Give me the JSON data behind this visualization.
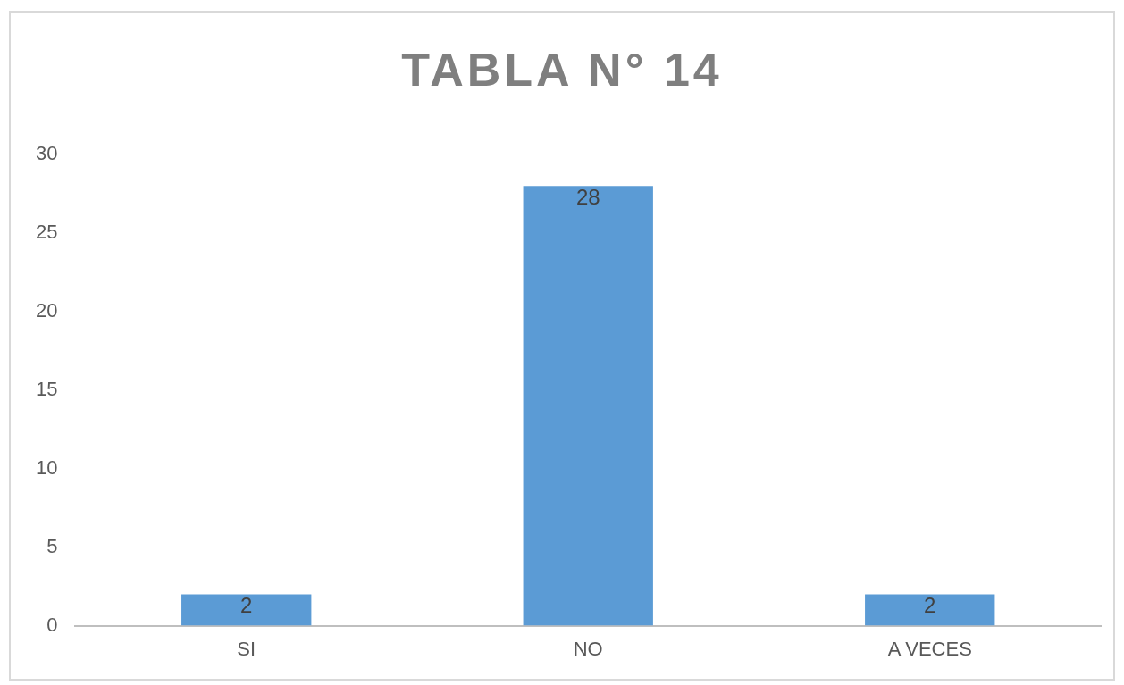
{
  "chart_data": {
    "type": "bar",
    "title": "TABLA N° 14",
    "categories": [
      "SI",
      "NO",
      "A VECES"
    ],
    "values": [
      2,
      28,
      2
    ],
    "color": "#5b9bd5",
    "ylim": [
      0,
      30
    ],
    "yticks": [
      0,
      5,
      10,
      15,
      20,
      25,
      30
    ],
    "grid": false,
    "legend": false,
    "data_labels": true
  }
}
